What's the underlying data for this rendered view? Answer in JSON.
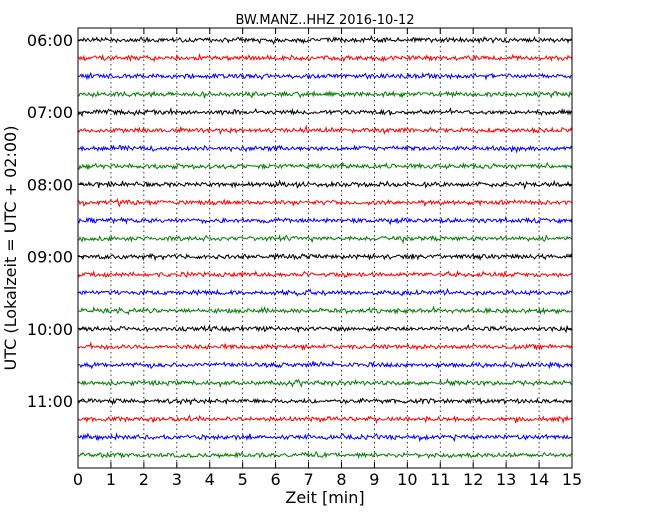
{
  "chart_data": {
    "type": "line",
    "title": "BW.MANZ..HHZ 2016-10-12",
    "xlabel": "Zeit  [min]",
    "ylabel": "UTC (Lokalzeit = UTC + 02:00)",
    "xlim": [
      0,
      15
    ],
    "x_ticks": [
      "0",
      "1",
      "2",
      "3",
      "4",
      "5",
      "6",
      "7",
      "8",
      "9",
      "10",
      "11",
      "12",
      "13",
      "14",
      "15"
    ],
    "y_ticks": [
      "06:00",
      "07:00",
      "08:00",
      "09:00",
      "10:00",
      "11:00"
    ],
    "grid": "vertical-dotted",
    "colors": [
      "#000000",
      "#ff0000",
      "#0000ff",
      "#008000"
    ],
    "traces": [
      {
        "start": "06:00",
        "color": "#000000"
      },
      {
        "start": "06:15",
        "color": "#ff0000"
      },
      {
        "start": "06:30",
        "color": "#0000ff"
      },
      {
        "start": "06:45",
        "color": "#008000"
      },
      {
        "start": "07:00",
        "color": "#000000"
      },
      {
        "start": "07:15",
        "color": "#ff0000"
      },
      {
        "start": "07:30",
        "color": "#0000ff"
      },
      {
        "start": "07:45",
        "color": "#008000"
      },
      {
        "start": "08:00",
        "color": "#000000"
      },
      {
        "start": "08:15",
        "color": "#ff0000"
      },
      {
        "start": "08:30",
        "color": "#0000ff"
      },
      {
        "start": "08:45",
        "color": "#008000"
      },
      {
        "start": "09:00",
        "color": "#000000"
      },
      {
        "start": "09:15",
        "color": "#ff0000"
      },
      {
        "start": "09:30",
        "color": "#0000ff"
      },
      {
        "start": "09:45",
        "color": "#008000"
      },
      {
        "start": "10:00",
        "color": "#000000"
      },
      {
        "start": "10:15",
        "color": "#ff0000"
      },
      {
        "start": "10:30",
        "color": "#0000ff"
      },
      {
        "start": "10:45",
        "color": "#008000"
      },
      {
        "start": "11:00",
        "color": "#000000"
      },
      {
        "start": "11:15",
        "color": "#ff0000"
      },
      {
        "start": "11:30",
        "color": "#0000ff"
      },
      {
        "start": "11:45",
        "color": "#008000"
      }
    ]
  }
}
